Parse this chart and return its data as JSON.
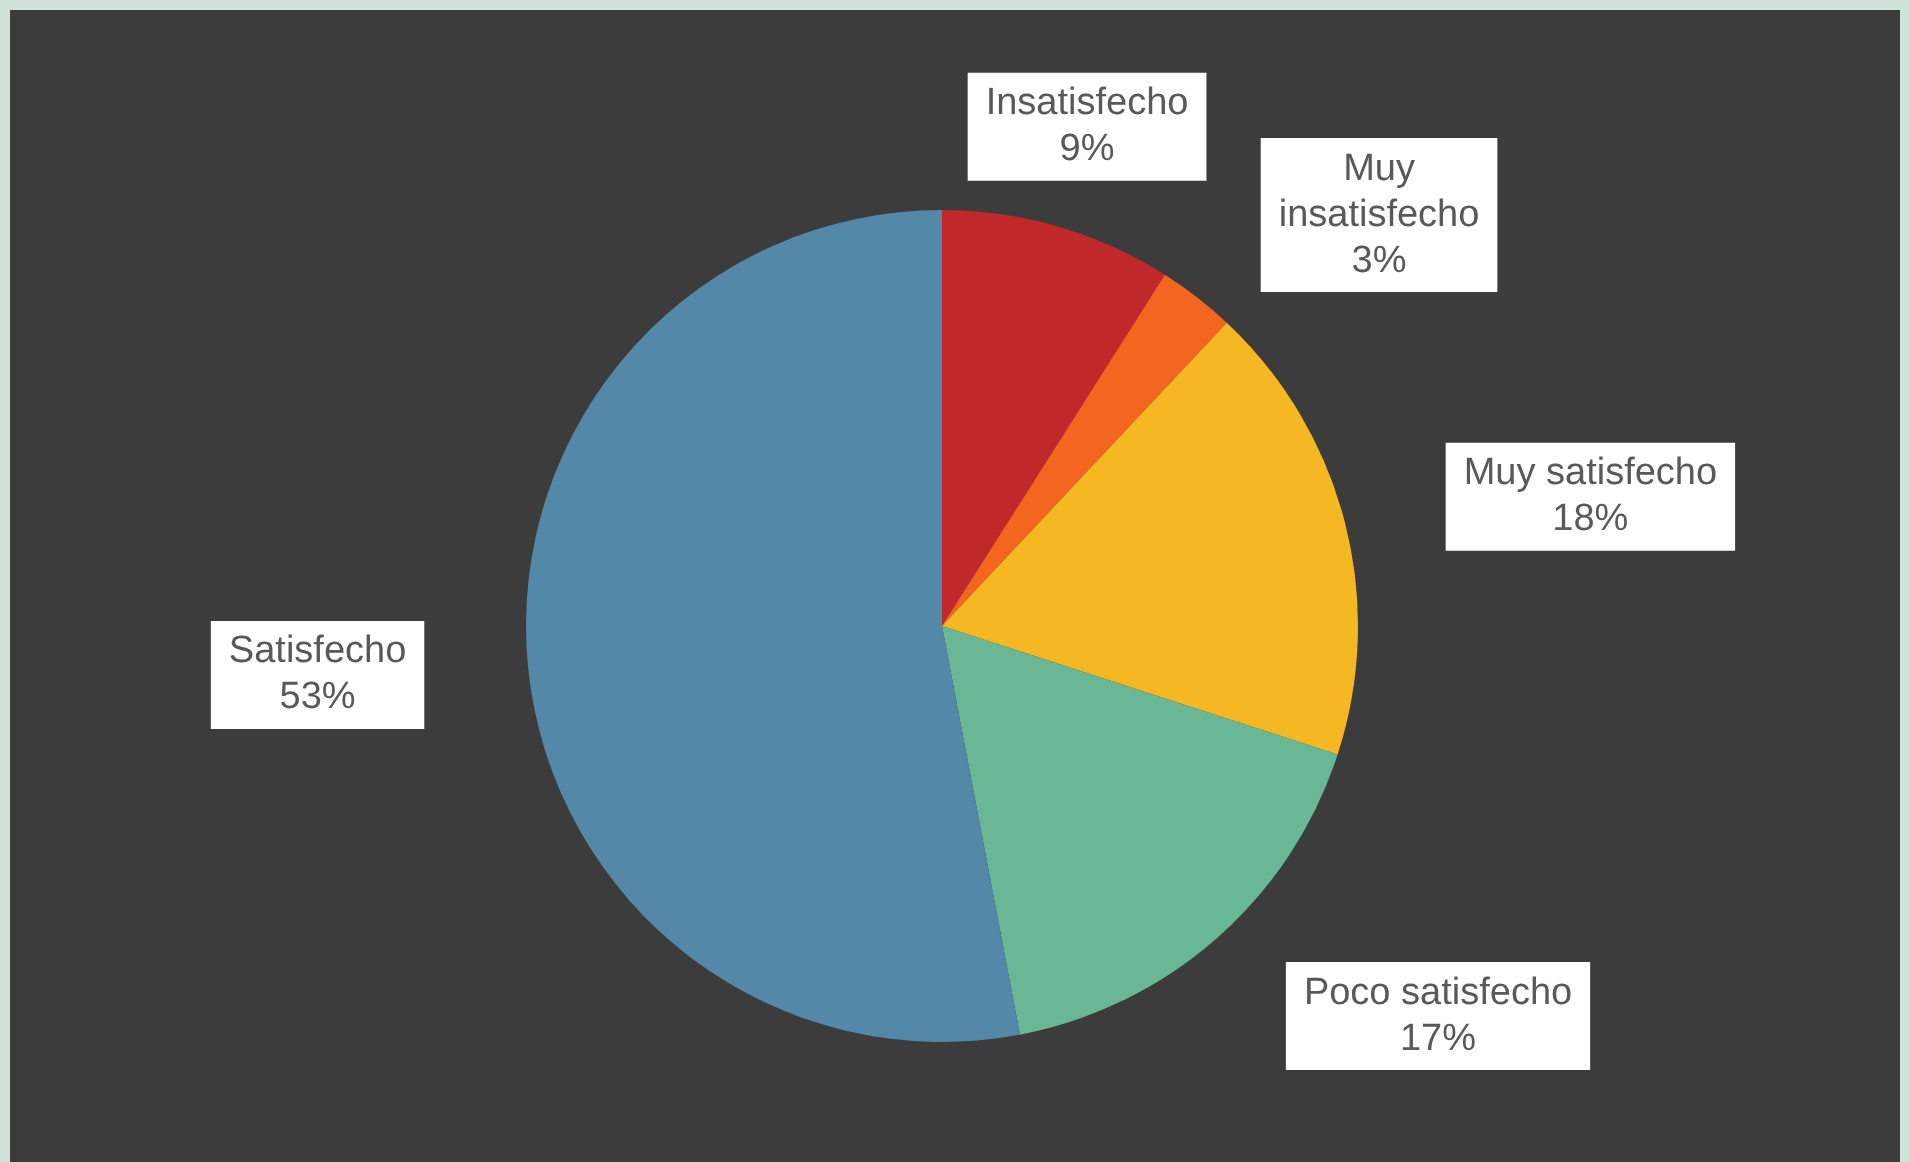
{
  "chart_data": {
    "type": "pie",
    "categories": [
      "Insatisfecho",
      "Muy insatisfecho",
      "Muy satisfecho",
      "Poco satisfecho",
      "Satisfecho"
    ],
    "values": [
      9,
      3,
      18,
      17,
      53
    ],
    "value_labels": [
      "9%",
      "3%",
      "18%",
      "17%",
      "53%"
    ],
    "colors": [
      "#c0282c",
      "#f4661f",
      "#f5b823",
      "#69b794",
      "#5488a9"
    ],
    "legend": false
  }
}
